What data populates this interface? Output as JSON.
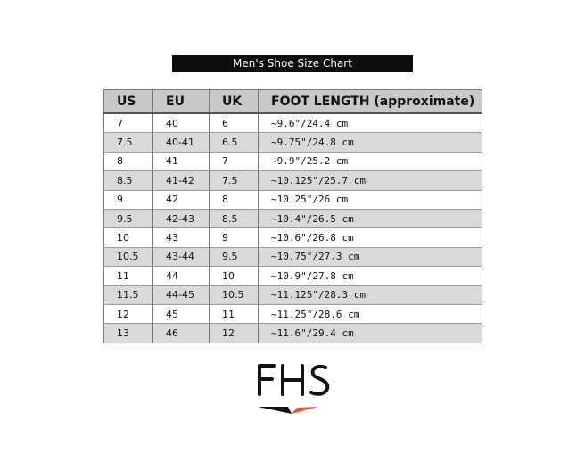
{
  "title": "Men's Shoe Size Chart",
  "headers": [
    "US",
    "EU",
    "UK",
    "FOOT LENGTH (approximate)"
  ],
  "rows": [
    [
      "7",
      "40",
      "6",
      "~9.6\"/24.4 cm"
    ],
    [
      "7.5",
      "40-41",
      "6.5",
      "~9.75\"/24.8 cm"
    ],
    [
      "8",
      "41",
      "7",
      "~9.9\"/25.2 cm"
    ],
    [
      "8.5",
      "41-42",
      "7.5",
      "~10.125\"/25.7 cm"
    ],
    [
      "9",
      "42",
      "8",
      "~10.25\"/26 cm"
    ],
    [
      "9.5",
      "42-43",
      "8.5",
      "~10.4\"/26.5 cm"
    ],
    [
      "10",
      "43",
      "9",
      "~10.6\"/26.8 cm"
    ],
    [
      "10.5",
      "43-44",
      "9.5",
      "~10.75\"/27.3 cm"
    ],
    [
      "11",
      "44",
      "10",
      "~10.9\"/27.8 cm"
    ],
    [
      "11.5",
      "44-45",
      "10.5",
      "~11.125\"/28.3 cm"
    ],
    [
      "12",
      "45",
      "11",
      "~11.25\"/28.6 cm"
    ],
    [
      "13",
      "46",
      "12",
      "~11.6\"/29.4 cm"
    ]
  ],
  "logo": {
    "text": "FHS",
    "accent": "#e8542b"
  }
}
